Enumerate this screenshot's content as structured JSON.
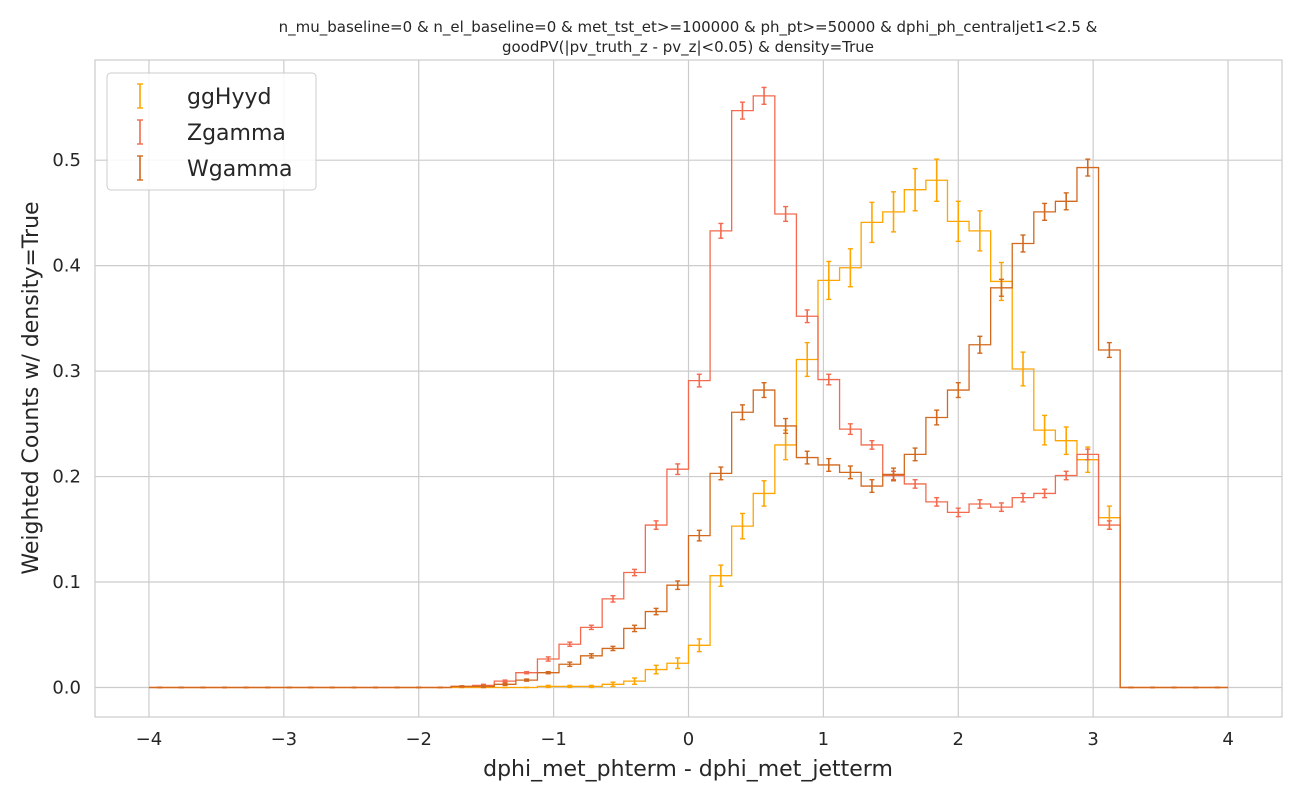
{
  "chart_data": {
    "type": "line",
    "title_lines": [
      "n_mu_baseline=0 & n_el_baseline=0 & met_tst_et>=100000 & ph_pt>=50000 & dphi_ph_centraljet1<2.5 &",
      "goodPV(|pv_truth_z - pv_z|<0.05) & density=True"
    ],
    "xlabel": "dphi_met_phterm - dphi_met_jetterm",
    "ylabel": "Weighted Counts w/ density=True",
    "xlim": [
      -4.4,
      4.4
    ],
    "ylim": [
      -0.028,
      0.595
    ],
    "xticks": [
      -4,
      -3,
      -2,
      -1,
      0,
      1,
      2,
      3,
      4
    ],
    "xtick_labels": [
      "−4",
      "−3",
      "−2",
      "−1",
      "0",
      "1",
      "2",
      "3",
      "4"
    ],
    "yticks": [
      0.0,
      0.1,
      0.2,
      0.3,
      0.4,
      0.5
    ],
    "ytick_labels": [
      "0.0",
      "0.1",
      "0.2",
      "0.3",
      "0.4",
      "0.5"
    ],
    "grid": true,
    "legend_position": "top-left",
    "bin_edges": [
      -4.0,
      -3.84,
      -3.68,
      -3.52,
      -3.36,
      -3.2,
      -3.04,
      -2.88,
      -2.72,
      -2.56,
      -2.4,
      -2.24,
      -2.08,
      -1.92,
      -1.76,
      -1.6,
      -1.44,
      -1.28,
      -1.12,
      -0.96,
      -0.8,
      -0.64,
      -0.48,
      -0.32,
      -0.16,
      0.0,
      0.16,
      0.32,
      0.48,
      0.64,
      0.8,
      0.96,
      1.12,
      1.28,
      1.44,
      1.6,
      1.76,
      1.92,
      2.08,
      2.24,
      2.4,
      2.56,
      2.72,
      2.88,
      3.04,
      3.2,
      3.36,
      3.52,
      3.68,
      3.84,
      4.0
    ],
    "series": [
      {
        "name": "ggHyyd",
        "color": "#ffa500",
        "values": [
          0,
          0,
          0,
          0,
          0,
          0,
          0,
          0,
          0,
          0,
          0,
          0,
          0,
          0,
          0,
          0,
          0,
          0,
          0.001,
          0.001,
          0.001,
          0.003,
          0.006,
          0.017,
          0.023,
          0.04,
          0.106,
          0.153,
          0.184,
          0.23,
          0.311,
          0.386,
          0.398,
          0.441,
          0.451,
          0.472,
          0.481,
          0.442,
          0.433,
          0.385,
          0.302,
          0.244,
          0.234,
          0.216,
          0.161,
          0,
          0,
          0,
          0,
          0
        ],
        "errors": [
          0,
          0,
          0,
          0,
          0,
          0,
          0,
          0,
          0,
          0,
          0,
          0,
          0,
          0,
          0,
          0,
          0,
          0,
          0.001,
          0.001,
          0.001,
          0.002,
          0.003,
          0.004,
          0.005,
          0.006,
          0.01,
          0.012,
          0.012,
          0.014,
          0.016,
          0.018,
          0.018,
          0.019,
          0.019,
          0.02,
          0.02,
          0.019,
          0.019,
          0.018,
          0.016,
          0.014,
          0.013,
          0.012,
          0.011,
          0,
          0,
          0,
          0,
          0
        ]
      },
      {
        "name": "Zgamma",
        "color": "#f46a4e",
        "values": [
          0,
          0,
          0,
          0,
          0,
          0,
          0,
          0,
          0,
          0,
          0,
          0,
          0,
          0,
          0.001,
          0.002,
          0.006,
          0.014,
          0.027,
          0.041,
          0.057,
          0.084,
          0.109,
          0.154,
          0.207,
          0.291,
          0.433,
          0.547,
          0.561,
          0.449,
          0.352,
          0.292,
          0.245,
          0.23,
          0.201,
          0.193,
          0.176,
          0.166,
          0.174,
          0.171,
          0.18,
          0.184,
          0.201,
          0.221,
          0.154,
          0,
          0,
          0,
          0,
          0
        ],
        "errors": [
          0,
          0,
          0,
          0,
          0,
          0,
          0,
          0,
          0,
          0,
          0,
          0,
          0,
          0,
          0.0005,
          0.001,
          0.001,
          0.001,
          0.002,
          0.002,
          0.002,
          0.003,
          0.003,
          0.004,
          0.005,
          0.006,
          0.007,
          0.008,
          0.008,
          0.007,
          0.006,
          0.005,
          0.005,
          0.004,
          0.004,
          0.004,
          0.004,
          0.004,
          0.004,
          0.004,
          0.004,
          0.004,
          0.004,
          0.005,
          0.004,
          0,
          0,
          0,
          0,
          0
        ]
      },
      {
        "name": "Wgamma",
        "color": "#d2691e",
        "values": [
          0,
          0,
          0,
          0,
          0,
          0,
          0,
          0,
          0,
          0,
          0,
          0,
          0,
          0,
          0.001,
          0.001,
          0.003,
          0.007,
          0.014,
          0.022,
          0.03,
          0.037,
          0.056,
          0.072,
          0.097,
          0.144,
          0.203,
          0.261,
          0.282,
          0.248,
          0.218,
          0.211,
          0.204,
          0.191,
          0.202,
          0.221,
          0.256,
          0.282,
          0.325,
          0.379,
          0.421,
          0.451,
          0.461,
          0.493,
          0.32,
          0,
          0,
          0,
          0,
          0
        ],
        "errors": [
          0,
          0,
          0,
          0,
          0,
          0,
          0,
          0,
          0,
          0,
          0,
          0,
          0,
          0,
          0.0005,
          0.001,
          0.001,
          0.001,
          0.001,
          0.002,
          0.002,
          0.002,
          0.003,
          0.003,
          0.004,
          0.005,
          0.006,
          0.007,
          0.007,
          0.007,
          0.006,
          0.006,
          0.006,
          0.006,
          0.006,
          0.006,
          0.007,
          0.007,
          0.008,
          0.008,
          0.008,
          0.008,
          0.008,
          0.008,
          0.007,
          0,
          0,
          0,
          0,
          0
        ]
      }
    ]
  }
}
